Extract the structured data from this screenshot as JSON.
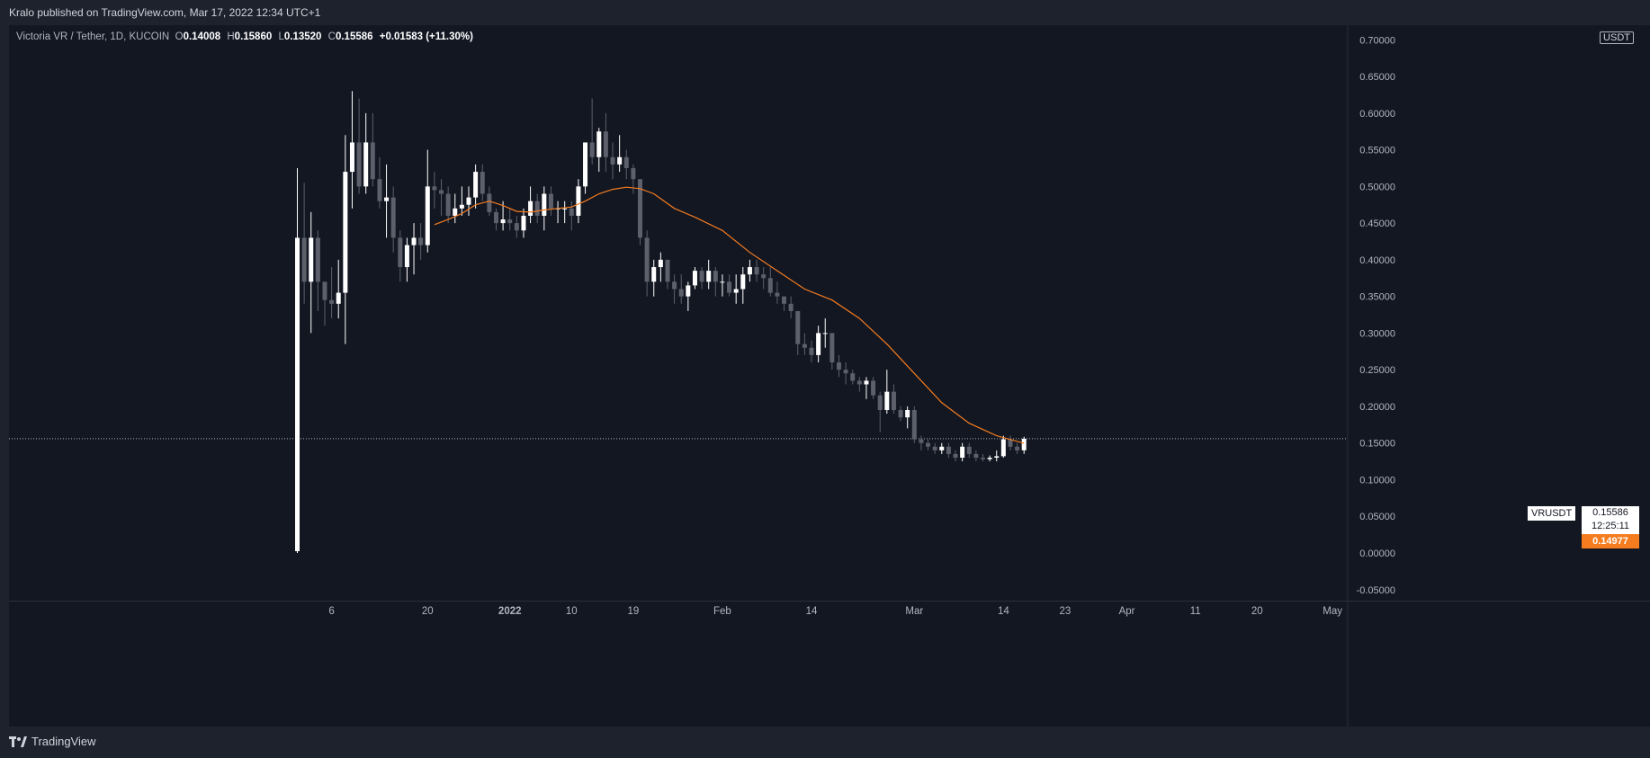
{
  "header": {
    "published": "Kralo published on TradingView.com, Mar 17, 2022 12:34 UTC+1"
  },
  "legend": {
    "symbol": "Victoria VR / Tether, 1D, KUCOIN",
    "open_label": "O",
    "open": "0.14008",
    "high_label": "H",
    "high": "0.15860",
    "low_label": "L",
    "low": "0.13520",
    "close_label": "C",
    "close": "0.15586",
    "change": "+0.01583 (+11.30%)"
  },
  "unit": "USDT",
  "tags": {
    "symbol": "VRUSDT",
    "last_price": "0.15586",
    "countdown": "12:25:11",
    "ma_value": "0.14977"
  },
  "footer": {
    "brand": "TradingView"
  },
  "colors": {
    "background": "#131722",
    "frame": "#1e222d",
    "up_candle": "#ffffff",
    "down_candle": "#5d606b",
    "moving_average": "#f57c1f",
    "text": "#b2b5be"
  },
  "chart_data": {
    "type": "candlestick",
    "ylim": [
      -0.065,
      0.72
    ],
    "y_ticks": [
      "0.70000",
      "0.65000",
      "0.60000",
      "0.55000",
      "0.50000",
      "0.45000",
      "0.40000",
      "0.35000",
      "0.30000",
      "0.25000",
      "0.20000",
      "0.15000",
      "0.10000",
      "0.05000",
      "0.00000",
      "-0.05000"
    ],
    "x_ticks": [
      {
        "label": "6",
        "date": "2021-12-06"
      },
      {
        "label": "20",
        "date": "2021-12-20"
      },
      {
        "label": "2022",
        "date": "2022-01-01"
      },
      {
        "label": "10",
        "date": "2022-01-10"
      },
      {
        "label": "19",
        "date": "2022-01-19"
      },
      {
        "label": "Feb",
        "date": "2022-02-01"
      },
      {
        "label": "14",
        "date": "2022-02-14"
      },
      {
        "label": "Mar",
        "date": "2022-03-01"
      },
      {
        "label": "14",
        "date": "2022-03-14"
      },
      {
        "label": "23",
        "date": "2022-03-23"
      },
      {
        "label": "Apr",
        "date": "2022-04-01"
      },
      {
        "label": "11",
        "date": "2022-04-11"
      },
      {
        "label": "20",
        "date": "2022-04-20"
      },
      {
        "label": "May",
        "date": "2022-05-01"
      }
    ],
    "last_price_line": 0.15586,
    "candles": [
      {
        "date": "2021-12-01",
        "o": 0.0025,
        "h": 0.525,
        "l": 0.0,
        "c": 0.43
      },
      {
        "date": "2021-12-02",
        "o": 0.43,
        "h": 0.505,
        "l": 0.34,
        "c": 0.37
      },
      {
        "date": "2021-12-03",
        "o": 0.37,
        "h": 0.465,
        "l": 0.3,
        "c": 0.43
      },
      {
        "date": "2021-12-04",
        "o": 0.43,
        "h": 0.44,
        "l": 0.33,
        "c": 0.37
      },
      {
        "date": "2021-12-05",
        "o": 0.37,
        "h": 0.37,
        "l": 0.31,
        "c": 0.345
      },
      {
        "date": "2021-12-06",
        "o": 0.345,
        "h": 0.39,
        "l": 0.32,
        "c": 0.34
      },
      {
        "date": "2021-12-07",
        "o": 0.34,
        "h": 0.4,
        "l": 0.32,
        "c": 0.355
      },
      {
        "date": "2021-12-08",
        "o": 0.355,
        "h": 0.57,
        "l": 0.285,
        "c": 0.52
      },
      {
        "date": "2021-12-09",
        "o": 0.52,
        "h": 0.63,
        "l": 0.47,
        "c": 0.56
      },
      {
        "date": "2021-12-10",
        "o": 0.56,
        "h": 0.62,
        "l": 0.49,
        "c": 0.5
      },
      {
        "date": "2021-12-11",
        "o": 0.5,
        "h": 0.6,
        "l": 0.49,
        "c": 0.56
      },
      {
        "date": "2021-12-12",
        "o": 0.56,
        "h": 0.6,
        "l": 0.5,
        "c": 0.51
      },
      {
        "date": "2021-12-13",
        "o": 0.51,
        "h": 0.54,
        "l": 0.47,
        "c": 0.48
      },
      {
        "date": "2021-12-14",
        "o": 0.48,
        "h": 0.53,
        "l": 0.43,
        "c": 0.485
      },
      {
        "date": "2021-12-15",
        "o": 0.485,
        "h": 0.5,
        "l": 0.41,
        "c": 0.43
      },
      {
        "date": "2021-12-16",
        "o": 0.43,
        "h": 0.44,
        "l": 0.37,
        "c": 0.39
      },
      {
        "date": "2021-12-17",
        "o": 0.39,
        "h": 0.43,
        "l": 0.37,
        "c": 0.42
      },
      {
        "date": "2021-12-18",
        "o": 0.42,
        "h": 0.45,
        "l": 0.38,
        "c": 0.43
      },
      {
        "date": "2021-12-19",
        "o": 0.43,
        "h": 0.45,
        "l": 0.4,
        "c": 0.42
      },
      {
        "date": "2021-12-20",
        "o": 0.42,
        "h": 0.55,
        "l": 0.41,
        "c": 0.5
      },
      {
        "date": "2021-12-21",
        "o": 0.5,
        "h": 0.52,
        "l": 0.47,
        "c": 0.495
      },
      {
        "date": "2021-12-22",
        "o": 0.495,
        "h": 0.51,
        "l": 0.46,
        "c": 0.49
      },
      {
        "date": "2021-12-23",
        "o": 0.49,
        "h": 0.5,
        "l": 0.45,
        "c": 0.46
      },
      {
        "date": "2021-12-24",
        "o": 0.46,
        "h": 0.49,
        "l": 0.45,
        "c": 0.47
      },
      {
        "date": "2021-12-25",
        "o": 0.47,
        "h": 0.5,
        "l": 0.46,
        "c": 0.475
      },
      {
        "date": "2021-12-26",
        "o": 0.475,
        "h": 0.5,
        "l": 0.46,
        "c": 0.485
      },
      {
        "date": "2021-12-27",
        "o": 0.485,
        "h": 0.53,
        "l": 0.47,
        "c": 0.52
      },
      {
        "date": "2021-12-28",
        "o": 0.52,
        "h": 0.53,
        "l": 0.48,
        "c": 0.49
      },
      {
        "date": "2021-12-29",
        "o": 0.49,
        "h": 0.5,
        "l": 0.46,
        "c": 0.465
      },
      {
        "date": "2021-12-30",
        "o": 0.465,
        "h": 0.47,
        "l": 0.44,
        "c": 0.45
      },
      {
        "date": "2021-12-31",
        "o": 0.45,
        "h": 0.48,
        "l": 0.44,
        "c": 0.455
      },
      {
        "date": "2022-01-01",
        "o": 0.455,
        "h": 0.47,
        "l": 0.44,
        "c": 0.45
      },
      {
        "date": "2022-01-02",
        "o": 0.45,
        "h": 0.46,
        "l": 0.43,
        "c": 0.44
      },
      {
        "date": "2022-01-03",
        "o": 0.44,
        "h": 0.47,
        "l": 0.43,
        "c": 0.46
      },
      {
        "date": "2022-01-04",
        "o": 0.46,
        "h": 0.5,
        "l": 0.45,
        "c": 0.48
      },
      {
        "date": "2022-01-05",
        "o": 0.48,
        "h": 0.49,
        "l": 0.45,
        "c": 0.46
      },
      {
        "date": "2022-01-06",
        "o": 0.46,
        "h": 0.5,
        "l": 0.44,
        "c": 0.49
      },
      {
        "date": "2022-01-07",
        "o": 0.49,
        "h": 0.5,
        "l": 0.46,
        "c": 0.47
      },
      {
        "date": "2022-01-08",
        "o": 0.47,
        "h": 0.48,
        "l": 0.45,
        "c": 0.47
      },
      {
        "date": "2022-01-09",
        "o": 0.47,
        "h": 0.48,
        "l": 0.45,
        "c": 0.47
      },
      {
        "date": "2022-01-10",
        "o": 0.47,
        "h": 0.48,
        "l": 0.44,
        "c": 0.46
      },
      {
        "date": "2022-01-11",
        "o": 0.46,
        "h": 0.51,
        "l": 0.45,
        "c": 0.5
      },
      {
        "date": "2022-01-12",
        "o": 0.5,
        "h": 0.56,
        "l": 0.49,
        "c": 0.56
      },
      {
        "date": "2022-01-13",
        "o": 0.56,
        "h": 0.62,
        "l": 0.53,
        "c": 0.54
      },
      {
        "date": "2022-01-14",
        "o": 0.54,
        "h": 0.58,
        "l": 0.52,
        "c": 0.575
      },
      {
        "date": "2022-01-15",
        "o": 0.575,
        "h": 0.6,
        "l": 0.52,
        "c": 0.54
      },
      {
        "date": "2022-01-16",
        "o": 0.54,
        "h": 0.56,
        "l": 0.51,
        "c": 0.53
      },
      {
        "date": "2022-01-17",
        "o": 0.53,
        "h": 0.57,
        "l": 0.52,
        "c": 0.54
      },
      {
        "date": "2022-01-18",
        "o": 0.54,
        "h": 0.55,
        "l": 0.51,
        "c": 0.525
      },
      {
        "date": "2022-01-19",
        "o": 0.525,
        "h": 0.53,
        "l": 0.49,
        "c": 0.51
      },
      {
        "date": "2022-01-20",
        "o": 0.51,
        "h": 0.51,
        "l": 0.42,
        "c": 0.43
      },
      {
        "date": "2022-01-21",
        "o": 0.43,
        "h": 0.44,
        "l": 0.35,
        "c": 0.37
      },
      {
        "date": "2022-01-22",
        "o": 0.37,
        "h": 0.4,
        "l": 0.35,
        "c": 0.39
      },
      {
        "date": "2022-01-23",
        "o": 0.39,
        "h": 0.41,
        "l": 0.37,
        "c": 0.4
      },
      {
        "date": "2022-01-24",
        "o": 0.4,
        "h": 0.4,
        "l": 0.36,
        "c": 0.37
      },
      {
        "date": "2022-01-25",
        "o": 0.37,
        "h": 0.38,
        "l": 0.34,
        "c": 0.36
      },
      {
        "date": "2022-01-26",
        "o": 0.36,
        "h": 0.38,
        "l": 0.34,
        "c": 0.35
      },
      {
        "date": "2022-01-27",
        "o": 0.35,
        "h": 0.37,
        "l": 0.33,
        "c": 0.365
      },
      {
        "date": "2022-01-28",
        "o": 0.365,
        "h": 0.39,
        "l": 0.36,
        "c": 0.385
      },
      {
        "date": "2022-01-29",
        "o": 0.385,
        "h": 0.39,
        "l": 0.36,
        "c": 0.37
      },
      {
        "date": "2022-01-30",
        "o": 0.37,
        "h": 0.4,
        "l": 0.36,
        "c": 0.385
      },
      {
        "date": "2022-01-31",
        "o": 0.385,
        "h": 0.39,
        "l": 0.35,
        "c": 0.37
      },
      {
        "date": "2022-02-01",
        "o": 0.37,
        "h": 0.38,
        "l": 0.35,
        "c": 0.37
      },
      {
        "date": "2022-02-02",
        "o": 0.37,
        "h": 0.38,
        "l": 0.35,
        "c": 0.355
      },
      {
        "date": "2022-02-03",
        "o": 0.355,
        "h": 0.38,
        "l": 0.34,
        "c": 0.36
      },
      {
        "date": "2022-02-04",
        "o": 0.36,
        "h": 0.39,
        "l": 0.34,
        "c": 0.38
      },
      {
        "date": "2022-02-05",
        "o": 0.38,
        "h": 0.4,
        "l": 0.37,
        "c": 0.39
      },
      {
        "date": "2022-02-06",
        "o": 0.39,
        "h": 0.4,
        "l": 0.37,
        "c": 0.38
      },
      {
        "date": "2022-02-07",
        "o": 0.38,
        "h": 0.39,
        "l": 0.36,
        "c": 0.375
      },
      {
        "date": "2022-02-08",
        "o": 0.375,
        "h": 0.39,
        "l": 0.35,
        "c": 0.355
      },
      {
        "date": "2022-02-09",
        "o": 0.355,
        "h": 0.37,
        "l": 0.34,
        "c": 0.35
      },
      {
        "date": "2022-02-10",
        "o": 0.35,
        "h": 0.35,
        "l": 0.33,
        "c": 0.34
      },
      {
        "date": "2022-02-11",
        "o": 0.34,
        "h": 0.35,
        "l": 0.32,
        "c": 0.33
      },
      {
        "date": "2022-02-12",
        "o": 0.33,
        "h": 0.33,
        "l": 0.27,
        "c": 0.285
      },
      {
        "date": "2022-02-13",
        "o": 0.285,
        "h": 0.3,
        "l": 0.27,
        "c": 0.28
      },
      {
        "date": "2022-02-14",
        "o": 0.28,
        "h": 0.29,
        "l": 0.26,
        "c": 0.27
      },
      {
        "date": "2022-02-15",
        "o": 0.27,
        "h": 0.31,
        "l": 0.26,
        "c": 0.3
      },
      {
        "date": "2022-02-16",
        "o": 0.3,
        "h": 0.32,
        "l": 0.28,
        "c": 0.3
      },
      {
        "date": "2022-02-17",
        "o": 0.3,
        "h": 0.3,
        "l": 0.25,
        "c": 0.26
      },
      {
        "date": "2022-02-18",
        "o": 0.26,
        "h": 0.27,
        "l": 0.24,
        "c": 0.25
      },
      {
        "date": "2022-02-19",
        "o": 0.25,
        "h": 0.26,
        "l": 0.23,
        "c": 0.245
      },
      {
        "date": "2022-02-20",
        "o": 0.245,
        "h": 0.25,
        "l": 0.23,
        "c": 0.235
      },
      {
        "date": "2022-02-21",
        "o": 0.235,
        "h": 0.24,
        "l": 0.22,
        "c": 0.23
      },
      {
        "date": "2022-02-22",
        "o": 0.23,
        "h": 0.24,
        "l": 0.21,
        "c": 0.235
      },
      {
        "date": "2022-02-23",
        "o": 0.235,
        "h": 0.24,
        "l": 0.21,
        "c": 0.215
      },
      {
        "date": "2022-02-24",
        "o": 0.215,
        "h": 0.22,
        "l": 0.165,
        "c": 0.195
      },
      {
        "date": "2022-02-25",
        "o": 0.195,
        "h": 0.25,
        "l": 0.19,
        "c": 0.22
      },
      {
        "date": "2022-02-26",
        "o": 0.22,
        "h": 0.23,
        "l": 0.19,
        "c": 0.195
      },
      {
        "date": "2022-02-27",
        "o": 0.195,
        "h": 0.2,
        "l": 0.18,
        "c": 0.185
      },
      {
        "date": "2022-02-28",
        "o": 0.185,
        "h": 0.2,
        "l": 0.17,
        "c": 0.195
      },
      {
        "date": "2022-03-01",
        "o": 0.195,
        "h": 0.2,
        "l": 0.15,
        "c": 0.155
      },
      {
        "date": "2022-03-02",
        "o": 0.155,
        "h": 0.16,
        "l": 0.14,
        "c": 0.15
      },
      {
        "date": "2022-03-03",
        "o": 0.15,
        "h": 0.155,
        "l": 0.14,
        "c": 0.145
      },
      {
        "date": "2022-03-04",
        "o": 0.145,
        "h": 0.15,
        "l": 0.135,
        "c": 0.14
      },
      {
        "date": "2022-03-05",
        "o": 0.14,
        "h": 0.15,
        "l": 0.135,
        "c": 0.145
      },
      {
        "date": "2022-03-06",
        "o": 0.145,
        "h": 0.15,
        "l": 0.13,
        "c": 0.135
      },
      {
        "date": "2022-03-07",
        "o": 0.135,
        "h": 0.14,
        "l": 0.125,
        "c": 0.13
      },
      {
        "date": "2022-03-08",
        "o": 0.13,
        "h": 0.15,
        "l": 0.125,
        "c": 0.145
      },
      {
        "date": "2022-03-09",
        "o": 0.145,
        "h": 0.15,
        "l": 0.13,
        "c": 0.135
      },
      {
        "date": "2022-03-10",
        "o": 0.135,
        "h": 0.14,
        "l": 0.125,
        "c": 0.13
      },
      {
        "date": "2022-03-11",
        "o": 0.13,
        "h": 0.135,
        "l": 0.125,
        "c": 0.128
      },
      {
        "date": "2022-03-12",
        "o": 0.128,
        "h": 0.133,
        "l": 0.125,
        "c": 0.13
      },
      {
        "date": "2022-03-13",
        "o": 0.13,
        "h": 0.14,
        "l": 0.125,
        "c": 0.132
      },
      {
        "date": "2022-03-14",
        "o": 0.132,
        "h": 0.16,
        "l": 0.13,
        "c": 0.155
      },
      {
        "date": "2022-03-15",
        "o": 0.155,
        "h": 0.16,
        "l": 0.14,
        "c": 0.145
      },
      {
        "date": "2022-03-16",
        "o": 0.145,
        "h": 0.15,
        "l": 0.135,
        "c": 0.14
      },
      {
        "date": "2022-03-17",
        "o": 0.14008,
        "h": 0.1586,
        "l": 0.1352,
        "c": 0.15586
      }
    ],
    "moving_average": [
      {
        "date": "2021-12-21",
        "v": 0.448
      },
      {
        "date": "2021-12-23",
        "v": 0.455
      },
      {
        "date": "2021-12-25",
        "v": 0.463
      },
      {
        "date": "2021-12-27",
        "v": 0.475
      },
      {
        "date": "2021-12-29",
        "v": 0.48
      },
      {
        "date": "2021-12-31",
        "v": 0.474
      },
      {
        "date": "2022-01-02",
        "v": 0.466
      },
      {
        "date": "2022-01-04",
        "v": 0.465
      },
      {
        "date": "2022-01-06",
        "v": 0.468
      },
      {
        "date": "2022-01-08",
        "v": 0.47
      },
      {
        "date": "2022-01-10",
        "v": 0.472
      },
      {
        "date": "2022-01-12",
        "v": 0.48
      },
      {
        "date": "2022-01-14",
        "v": 0.49
      },
      {
        "date": "2022-01-16",
        "v": 0.496
      },
      {
        "date": "2022-01-18",
        "v": 0.499
      },
      {
        "date": "2022-01-20",
        "v": 0.497
      },
      {
        "date": "2022-01-22",
        "v": 0.49
      },
      {
        "date": "2022-01-25",
        "v": 0.47
      },
      {
        "date": "2022-01-28",
        "v": 0.458
      },
      {
        "date": "2022-02-01",
        "v": 0.44
      },
      {
        "date": "2022-02-05",
        "v": 0.41
      },
      {
        "date": "2022-02-09",
        "v": 0.385
      },
      {
        "date": "2022-02-13",
        "v": 0.36
      },
      {
        "date": "2022-02-17",
        "v": 0.345
      },
      {
        "date": "2022-02-21",
        "v": 0.32
      },
      {
        "date": "2022-02-25",
        "v": 0.285
      },
      {
        "date": "2022-03-01",
        "v": 0.245
      },
      {
        "date": "2022-03-05",
        "v": 0.205
      },
      {
        "date": "2022-03-09",
        "v": 0.177
      },
      {
        "date": "2022-03-13",
        "v": 0.16
      },
      {
        "date": "2022-03-17",
        "v": 0.14977
      }
    ]
  }
}
